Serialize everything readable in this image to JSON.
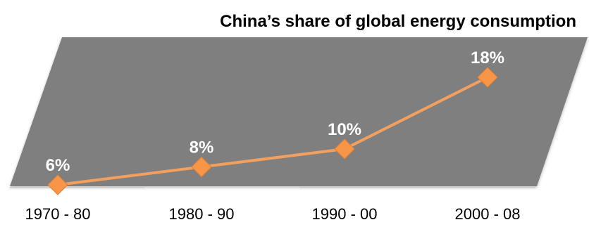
{
  "chart_data": {
    "type": "line",
    "title": "China’s share of global energy consumption",
    "categories": [
      "1970 - 80",
      "1980 - 90",
      "1990 - 00",
      "2000 - 08"
    ],
    "series": [
      {
        "values": [
          6,
          8,
          10,
          18
        ],
        "labels": [
          "6%",
          "8%",
          "10%",
          "18%"
        ]
      }
    ],
    "ylim": [
      6,
      18
    ],
    "grid": false,
    "legend": "none",
    "xlabel": "",
    "ylabel": ""
  },
  "colors": {
    "plot_area": "#7f7f7f",
    "line": "#f2a060",
    "marker": "#f79646",
    "data_label": "#ffffff",
    "text": "#000000"
  }
}
